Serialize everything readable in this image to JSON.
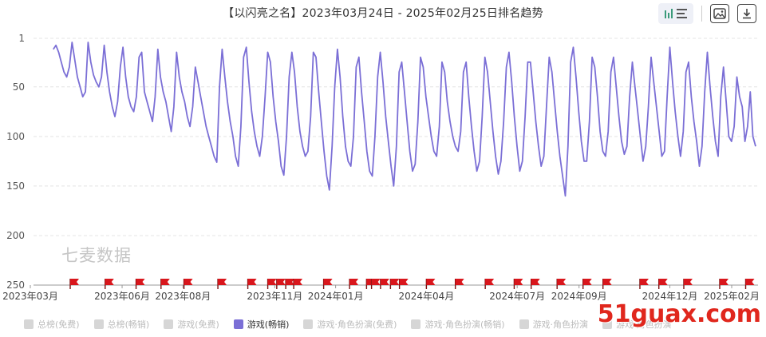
{
  "chart_data": {
    "type": "line",
    "title": "【以闪亮之名】2023年03月24日 - 2025年02月25日排名趋势",
    "y_inverted": true,
    "ylim": [
      1,
      250
    ],
    "y_ticks": [
      "1",
      "50",
      "100",
      "150",
      "200",
      "250"
    ],
    "y_tick_values": [
      1,
      50,
      100,
      150,
      200,
      250
    ],
    "x_ticks": [
      "2023年03月",
      "2023年06月",
      "2023年08月",
      "2023年11月",
      "2024年01月",
      "2024年04月",
      "2024年07月",
      "2024年09月",
      "2024年12月",
      "2025年02月"
    ],
    "x_tick_dates": [
      "2023-03-01",
      "2023-06-01",
      "2023-08-01",
      "2023-11-01",
      "2024-01-01",
      "2024-04-01",
      "2024-07-01",
      "2024-09-01",
      "2024-12-01",
      "2025-02-01"
    ],
    "grid": true,
    "series": [
      {
        "name": "游戏(畅销)",
        "color": "#7b6fd6",
        "x_range": [
          "2023-03-24",
          "2025-02-25"
        ],
        "values": [
          12,
          8,
          15,
          25,
          35,
          40,
          30,
          5,
          22,
          40,
          50,
          60,
          55,
          5,
          25,
          38,
          45,
          50,
          40,
          8,
          35,
          55,
          70,
          80,
          65,
          30,
          10,
          40,
          60,
          70,
          75,
          60,
          20,
          15,
          55,
          65,
          75,
          85,
          60,
          12,
          40,
          55,
          65,
          80,
          95,
          70,
          15,
          40,
          55,
          65,
          80,
          90,
          70,
          30,
          45,
          60,
          75,
          90,
          100,
          110,
          120,
          126,
          50,
          12,
          40,
          65,
          85,
          100,
          120,
          130,
          90,
          20,
          10,
          45,
          75,
          95,
          110,
          120,
          100,
          60,
          15,
          25,
          60,
          85,
          105,
          130,
          139,
          100,
          40,
          15,
          35,
          70,
          95,
          110,
          120,
          115,
          80,
          15,
          20,
          55,
          85,
          115,
          140,
          154,
          110,
          50,
          12,
          40,
          80,
          110,
          125,
          130,
          100,
          30,
          20,
          55,
          85,
          115,
          135,
          140,
          100,
          40,
          15,
          45,
          80,
          105,
          130,
          150,
          110,
          35,
          25,
          55,
          85,
          115,
          135,
          128,
          85,
          20,
          30,
          60,
          80,
          100,
          115,
          120,
          90,
          25,
          35,
          65,
          85,
          100,
          110,
          115,
          95,
          35,
          25,
          60,
          90,
          115,
          135,
          125,
          80,
          20,
          35,
          65,
          95,
          120,
          138,
          125,
          85,
          30,
          15,
          45,
          80,
          110,
          135,
          125,
          80,
          25,
          25,
          55,
          85,
          110,
          130,
          120,
          70,
          20,
          35,
          65,
          95,
          120,
          140,
          160,
          110,
          25,
          10,
          40,
          75,
          105,
          125,
          125,
          85,
          20,
          30,
          60,
          95,
          115,
          120,
          95,
          35,
          20,
          50,
          80,
          105,
          118,
          110,
          60,
          25,
          50,
          75,
          100,
          125,
          110,
          70,
          20,
          45,
          70,
          95,
          120,
          115,
          60,
          10,
          45,
          75,
          100,
          120,
          95,
          35,
          25,
          60,
          85,
          105,
          130,
          110,
          55,
          15,
          50,
          80,
          105,
          120,
          60,
          30,
          65,
          100,
          105,
          90,
          40,
          60,
          70,
          105,
          90,
          55,
          100,
          110
        ]
      }
    ],
    "event_flags": [
      "2023-04-10",
      "2023-05-15",
      "2023-06-15",
      "2023-07-10",
      "2023-08-02",
      "2023-09-05",
      "2023-10-05",
      "2023-10-25",
      "2023-11-03",
      "2023-11-12",
      "2023-11-20",
      "2023-12-20",
      "2024-01-15",
      "2024-02-01",
      "2024-02-06",
      "2024-02-15",
      "2024-02-25",
      "2024-03-05",
      "2024-04-01",
      "2024-04-30",
      "2024-05-30",
      "2024-06-28",
      "2024-07-15",
      "2024-08-10",
      "2024-09-05",
      "2024-09-25",
      "2024-11-01",
      "2024-11-20",
      "2024-12-15",
      "2025-01-20",
      "2025-02-15"
    ]
  },
  "legend": [
    {
      "label": "总榜(免费)",
      "active": false
    },
    {
      "label": "总榜(畅销)",
      "active": false
    },
    {
      "label": "游戏(免费)",
      "active": false
    },
    {
      "label": "游戏(畅销)",
      "active": true
    },
    {
      "label": "游戏·角色扮演(免费)",
      "active": false
    },
    {
      "label": "游戏·角色扮演(畅销)",
      "active": false
    },
    {
      "label": "游戏·角色扮演",
      "active": false
    },
    {
      "label": "游戏·角色扮演",
      "active": false
    }
  ],
  "watermark": "七麦数据",
  "site_watermark": "51guax.com",
  "toolbar": {
    "chart_type_icon": "bar-line-toggle-icon",
    "image_icon": "save-image-icon",
    "download_icon": "download-icon"
  }
}
